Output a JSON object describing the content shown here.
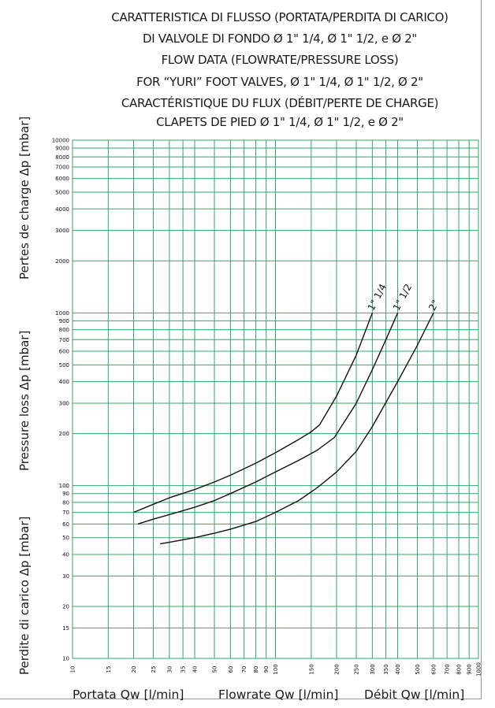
{
  "titles": {
    "it_1": "CARATTERISTICA DI FLUSSO (PORTATA/PERDITA DI CARICO)",
    "it_2": "DI VALVOLE DI FONDO Ø 1\" 1/4, Ø 1\" 1/2, e Ø 2\"",
    "en_1": "FLOW DATA (FLOWRATE/PRESSURE LOSS)",
    "en_2": "FOR “YURI” FOOT VALVES, Ø 1\" 1/4, Ø 1\" 1/2, Ø 2\"",
    "fr_1": "CARACTÉRISTIQUE DU FLUX (DÉBIT/PERTE DE CHARGE)",
    "fr_2": "CLAPETS DE PIED Ø 1\" 1/4, Ø 1\" 1/2, e Ø 2\""
  },
  "axis_labels": {
    "y_fr": "Pertes de charge Δp [mbar]",
    "y_en": "Pressure loss Δp [mbar]",
    "y_it": "Perdite di carico Δp [mbar]",
    "x_it": "Portata Qw [l/min]",
    "x_en": "Flowrate Qw [l/min]",
    "x_fr": "Débit Qw [l/min]"
  },
  "colors": {
    "grid": "#2fa86a",
    "curve": "#111111"
  },
  "chart_data": {
    "type": "line",
    "x_scale": "log",
    "y_scale": "log",
    "xlim": [
      10,
      1000
    ],
    "ylim": [
      10,
      10000
    ],
    "grid": true,
    "x_ticks": [
      10,
      15,
      20,
      25,
      30,
      35,
      40,
      50,
      60,
      70,
      80,
      90,
      100,
      150,
      200,
      250,
      300,
      350,
      400,
      500,
      600,
      700,
      800,
      900,
      1000
    ],
    "y_ticks": [
      10,
      15,
      20,
      30,
      40,
      50,
      60,
      70,
      80,
      90,
      100,
      200,
      300,
      400,
      500,
      600,
      700,
      800,
      900,
      1000,
      2000,
      3000,
      4000,
      5000,
      6000,
      7000,
      8000,
      9000,
      10000
    ],
    "series": [
      {
        "name": "1\" 1/4",
        "x": [
          20,
          25,
          30,
          40,
          50,
          60,
          80,
          100,
          130,
          150,
          165,
          200,
          250,
          300
        ],
        "y": [
          70,
          78,
          85,
          95,
          105,
          115,
          135,
          155,
          185,
          205,
          225,
          330,
          570,
          1000
        ]
      },
      {
        "name": "1\" 1/2",
        "x": [
          21,
          25,
          30,
          40,
          50,
          60,
          80,
          100,
          130,
          160,
          195,
          250,
          300,
          350,
          400
        ],
        "y": [
          60,
          64,
          68,
          75,
          82,
          90,
          105,
          120,
          140,
          160,
          190,
          300,
          470,
          700,
          1000
        ]
      },
      {
        "name": "2\"",
        "x": [
          27,
          30,
          40,
          50,
          60,
          80,
          100,
          130,
          160,
          200,
          250,
          300,
          400,
          500,
          600
        ],
        "y": [
          46,
          47,
          50,
          53,
          56,
          62,
          70,
          82,
          97,
          120,
          158,
          220,
          400,
          650,
          1000
        ]
      }
    ]
  }
}
